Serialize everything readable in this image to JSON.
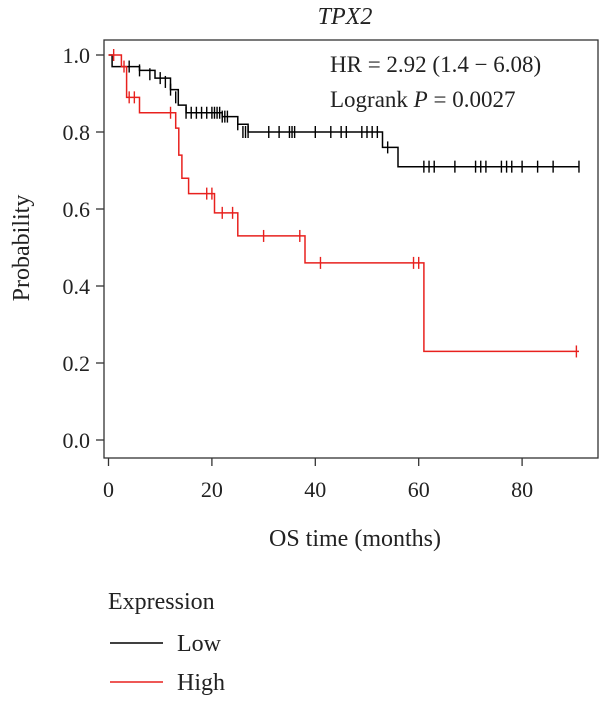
{
  "chart_data": {
    "type": "line",
    "title": "TPX2",
    "xlabel": "OS time (months)",
    "ylabel": "Probability",
    "xlim": [
      0,
      95
    ],
    "ylim": [
      0,
      1.05
    ],
    "xticks": [
      0,
      20,
      40,
      60,
      80
    ],
    "yticks": [
      0.0,
      0.2,
      0.4,
      0.6,
      0.8,
      1.0
    ],
    "xtick_labels": [
      "0",
      "20",
      "40",
      "60",
      "80"
    ],
    "ytick_labels": [
      "0.0",
      "0.2",
      "0.4",
      "0.6",
      "0.8",
      "1.0"
    ],
    "annotation": {
      "hr": "HR = 2.92 (1.4 − 6.08)",
      "logrank_prefix": "Logrank ",
      "logrank_p": "P",
      "logrank_suffix": " = 0.0027"
    },
    "legend": {
      "title": "Expression",
      "placement": "bottom-left"
    },
    "series": [
      {
        "name": "Low",
        "color": "#000000",
        "steps": [
          [
            0,
            1.0
          ],
          [
            0.7,
            0.97
          ],
          [
            6,
            0.96
          ],
          [
            9,
            0.94
          ],
          [
            12,
            0.91
          ],
          [
            13.5,
            0.87
          ],
          [
            15,
            0.85
          ],
          [
            22,
            0.84
          ],
          [
            25,
            0.82
          ],
          [
            27,
            0.8
          ],
          [
            53,
            0.76
          ],
          [
            56,
            0.71
          ],
          [
            91,
            0.71
          ]
        ],
        "censors": [
          [
            4,
            0.97
          ],
          [
            6,
            0.96
          ],
          [
            8,
            0.95
          ],
          [
            10,
            0.94
          ],
          [
            11,
            0.93
          ],
          [
            12,
            0.91
          ],
          [
            13,
            0.89
          ],
          [
            15,
            0.85
          ],
          [
            16,
            0.85
          ],
          [
            17,
            0.85
          ],
          [
            18,
            0.85
          ],
          [
            19,
            0.85
          ],
          [
            20,
            0.85
          ],
          [
            20.5,
            0.85
          ],
          [
            21,
            0.85
          ],
          [
            21.5,
            0.85
          ],
          [
            22,
            0.84
          ],
          [
            22.5,
            0.84
          ],
          [
            23,
            0.84
          ],
          [
            25,
            0.82
          ],
          [
            26,
            0.8
          ],
          [
            26.5,
            0.8
          ],
          [
            27,
            0.8
          ],
          [
            31,
            0.8
          ],
          [
            33,
            0.8
          ],
          [
            35,
            0.8
          ],
          [
            35.5,
            0.8
          ],
          [
            36,
            0.8
          ],
          [
            40,
            0.8
          ],
          [
            43,
            0.8
          ],
          [
            45,
            0.8
          ],
          [
            46,
            0.8
          ],
          [
            49,
            0.8
          ],
          [
            50,
            0.8
          ],
          [
            51,
            0.8
          ],
          [
            52,
            0.8
          ],
          [
            54,
            0.76
          ],
          [
            61,
            0.71
          ],
          [
            62,
            0.71
          ],
          [
            63,
            0.71
          ],
          [
            67,
            0.71
          ],
          [
            71,
            0.71
          ],
          [
            72,
            0.71
          ],
          [
            73,
            0.71
          ],
          [
            76,
            0.71
          ],
          [
            77,
            0.71
          ],
          [
            78,
            0.71
          ],
          [
            80,
            0.71
          ],
          [
            83,
            0.71
          ],
          [
            86,
            0.71
          ],
          [
            91,
            0.71
          ]
        ]
      },
      {
        "name": "High",
        "color": "#e8211e",
        "steps": [
          [
            0,
            1.0
          ],
          [
            2.5,
            0.97
          ],
          [
            3.5,
            0.89
          ],
          [
            6,
            0.85
          ],
          [
            13,
            0.81
          ],
          [
            13.6,
            0.74
          ],
          [
            14.2,
            0.68
          ],
          [
            15.5,
            0.64
          ],
          [
            20.5,
            0.59
          ],
          [
            25,
            0.53
          ],
          [
            38,
            0.46
          ],
          [
            61,
            0.23
          ],
          [
            91,
            0.23
          ]
        ],
        "censors": [
          [
            1,
            1.0
          ],
          [
            3,
            0.97
          ],
          [
            4,
            0.89
          ],
          [
            5,
            0.89
          ],
          [
            12,
            0.85
          ],
          [
            19,
            0.64
          ],
          [
            20,
            0.64
          ],
          [
            22,
            0.59
          ],
          [
            24,
            0.59
          ],
          [
            30,
            0.53
          ],
          [
            37,
            0.53
          ],
          [
            41,
            0.46
          ],
          [
            59,
            0.46
          ],
          [
            60,
            0.46
          ],
          [
            90.5,
            0.23
          ]
        ]
      }
    ]
  }
}
